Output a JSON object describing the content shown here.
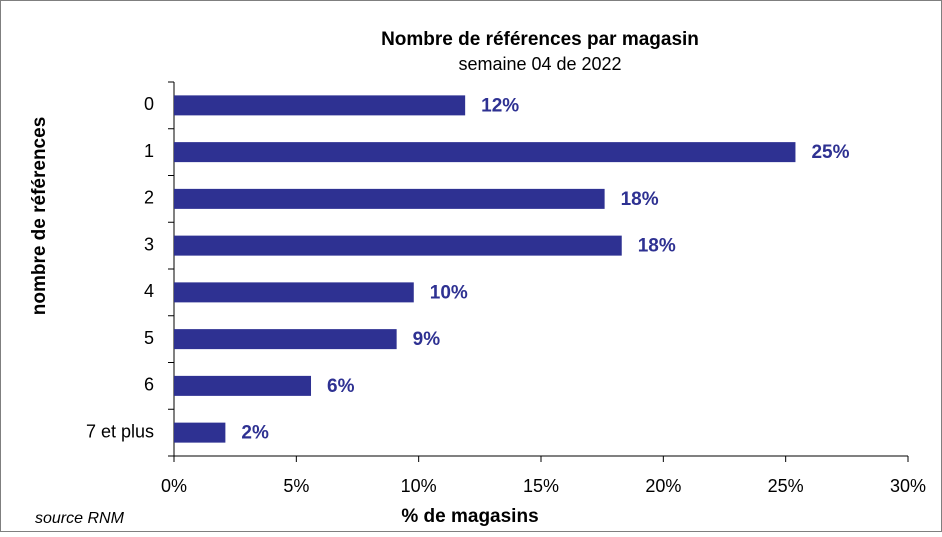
{
  "chart_data": {
    "type": "hbar",
    "title": "Nombre de références par magasin",
    "subtitle": "semaine 04 de 2022",
    "y_axis_label": "nombre de références",
    "x_axis_label": "% de magasins",
    "source": "source RNM",
    "categories": [
      "0",
      "1",
      "2",
      "3",
      "4",
      "5",
      "6",
      "7 et plus"
    ],
    "values": [
      11.9,
      25.4,
      17.6,
      18.3,
      9.8,
      9.1,
      5.6,
      2.1
    ],
    "value_labels": [
      "12%",
      "25%",
      "18%",
      "18%",
      "10%",
      "9%",
      "6%",
      "2%"
    ],
    "color": "#2e3192",
    "xlim": [
      0,
      30
    ],
    "xticks": [
      {
        "value": 0,
        "label": "0%"
      },
      {
        "value": 5,
        "label": "5%"
      },
      {
        "value": 10,
        "label": "10%"
      },
      {
        "value": 15,
        "label": "15%"
      },
      {
        "value": 20,
        "label": "20%"
      },
      {
        "value": 25,
        "label": "25%"
      },
      {
        "value": 30,
        "label": "30%"
      }
    ],
    "grid": false
  }
}
